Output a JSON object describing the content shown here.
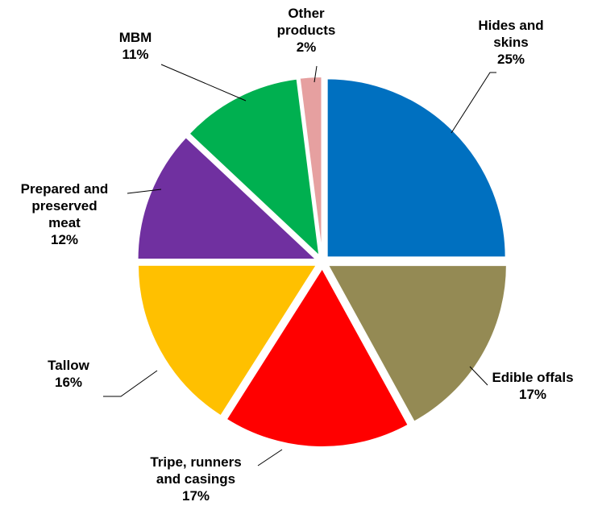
{
  "chart_data": {
    "type": "pie",
    "title": "",
    "slices": [
      {
        "label": [
          "Hides and",
          "skins"
        ],
        "pct": "25%",
        "value": 25,
        "color": "#0070C0"
      },
      {
        "label": [
          "Edible offals"
        ],
        "pct": "17%",
        "value": 17,
        "color": "#948A54"
      },
      {
        "label": [
          "Tripe, runners",
          "and casings"
        ],
        "pct": "17%",
        "value": 17,
        "color": "#FF0000"
      },
      {
        "label": [
          "Tallow"
        ],
        "pct": "16%",
        "value": 16,
        "color": "#FFC000"
      },
      {
        "label": [
          "Prepared and",
          "preserved",
          "meat"
        ],
        "pct": "12%",
        "value": 12,
        "color": "#7030A0"
      },
      {
        "label": [
          "MBM"
        ],
        "pct": "11%",
        "value": 11,
        "color": "#00B050"
      },
      {
        "label": [
          "Other",
          "products"
        ],
        "pct": "2%",
        "value": 2,
        "color": "#E6A0A0"
      }
    ]
  }
}
